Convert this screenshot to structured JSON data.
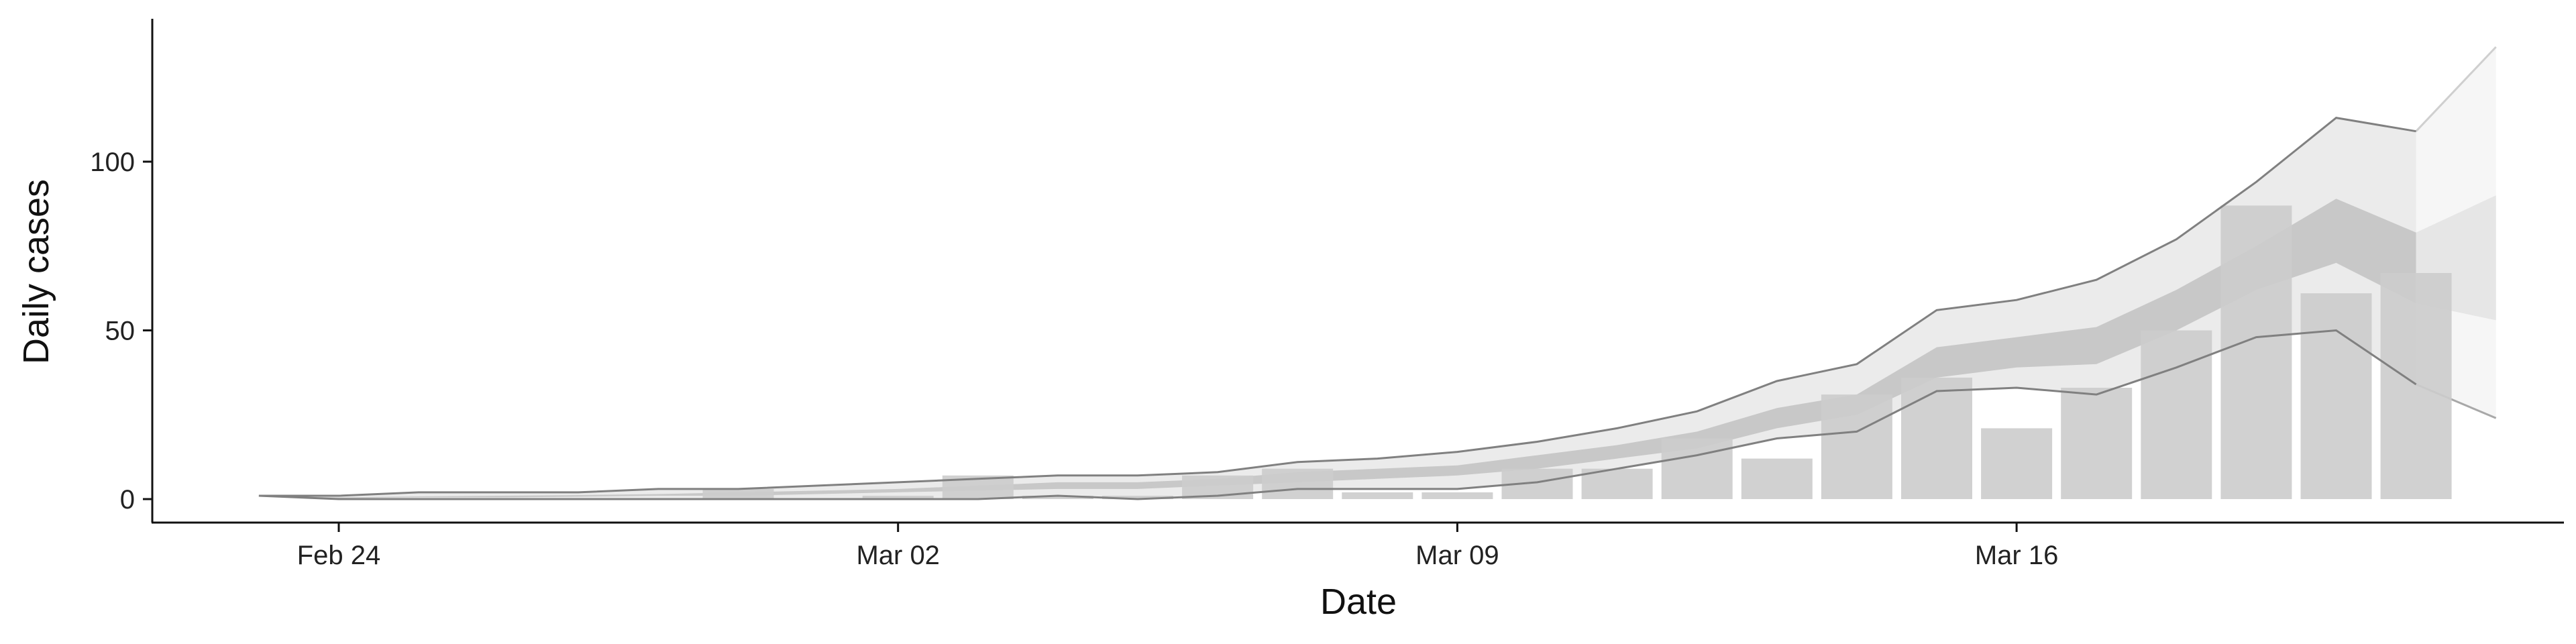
{
  "chart_data": {
    "type": "bar",
    "title": "",
    "xlabel": "Date",
    "ylabel": "Daily cases",
    "ylim": [
      -6,
      140
    ],
    "grid": false,
    "legend": "none",
    "x_ticks": [
      {
        "date": "2020-02-24",
        "label": "Feb 24"
      },
      {
        "date": "2020-03-02",
        "label": "Mar 02"
      },
      {
        "date": "2020-03-09",
        "label": "Mar 09"
      },
      {
        "date": "2020-03-16",
        "label": "Mar 16"
      }
    ],
    "y_ticks": [
      0,
      50,
      100
    ],
    "bars": {
      "x": [
        "2020-02-29",
        "2020-03-01",
        "2020-03-02",
        "2020-03-03",
        "2020-03-04",
        "2020-03-05",
        "2020-03-06",
        "2020-03-07",
        "2020-03-08",
        "2020-03-09",
        "2020-03-10",
        "2020-03-11",
        "2020-03-12",
        "2020-03-13",
        "2020-03-14",
        "2020-03-15",
        "2020-03-16",
        "2020-03-17",
        "2020-03-18",
        "2020-03-19",
        "2020-03-20",
        "2020-03-21",
        "2020-03-22"
      ],
      "values": [
        3,
        0,
        1,
        7,
        1,
        1,
        7,
        9,
        2,
        2,
        9,
        9,
        18,
        12,
        31,
        36,
        21,
        33,
        50,
        87,
        61,
        67,
        0
      ],
      "color": "#cccccc"
    },
    "bands": {
      "x": [
        "2020-02-23",
        "2020-02-24",
        "2020-02-25",
        "2020-02-26",
        "2020-02-27",
        "2020-02-28",
        "2020-02-29",
        "2020-03-01",
        "2020-03-02",
        "2020-03-03",
        "2020-03-04",
        "2020-03-05",
        "2020-03-06",
        "2020-03-07",
        "2020-03-08",
        "2020-03-09",
        "2020-03-10",
        "2020-03-11",
        "2020-03-12",
        "2020-03-13",
        "2020-03-14",
        "2020-03-15",
        "2020-03-16",
        "2020-03-17",
        "2020-03-18",
        "2020-03-19",
        "2020-03-20",
        "2020-03-21"
      ],
      "outer_upper": [
        1,
        1,
        2,
        2,
        2,
        3,
        3,
        4,
        5,
        6,
        7,
        7,
        8,
        11,
        12,
        14,
        17,
        21,
        26,
        35,
        40,
        56,
        59,
        65,
        77,
        94,
        113,
        109
      ],
      "outer_lower": [
        1,
        0,
        0,
        0,
        0,
        0,
        0,
        0,
        0,
        0,
        1,
        0,
        1,
        3,
        3,
        3,
        5,
        9,
        13,
        18,
        20,
        32,
        33,
        31,
        39,
        48,
        50,
        34
      ],
      "mid_upper": [
        1,
        0.5,
        0.8,
        1,
        1.2,
        1.5,
        2,
        2.5,
        3,
        4,
        5,
        5,
        6,
        8,
        9,
        10,
        13,
        16,
        20,
        27,
        31,
        45,
        48,
        51,
        62,
        75,
        89,
        79
      ],
      "mid_lower": [
        1,
        0.3,
        0.5,
        0.5,
        0.7,
        1,
        1,
        1.5,
        2,
        2.5,
        3,
        3,
        4,
        5,
        6,
        7,
        9,
        12,
        15,
        21,
        25,
        36,
        39,
        40,
        50,
        62,
        70,
        58
      ],
      "outer_color": "#ebebeb",
      "mid_color": "#c8c8c8",
      "line_color": "#808080"
    },
    "forecast": {
      "x": [
        "2020-03-21",
        "2020-03-22"
      ],
      "outer_upper": [
        109,
        134
      ],
      "outer_lower": [
        34,
        24
      ],
      "mid_upper": [
        79,
        90
      ],
      "mid_lower": [
        58,
        53
      ],
      "outer_color": "#f6f6f6",
      "mid_color": "#e6e6e6"
    }
  }
}
